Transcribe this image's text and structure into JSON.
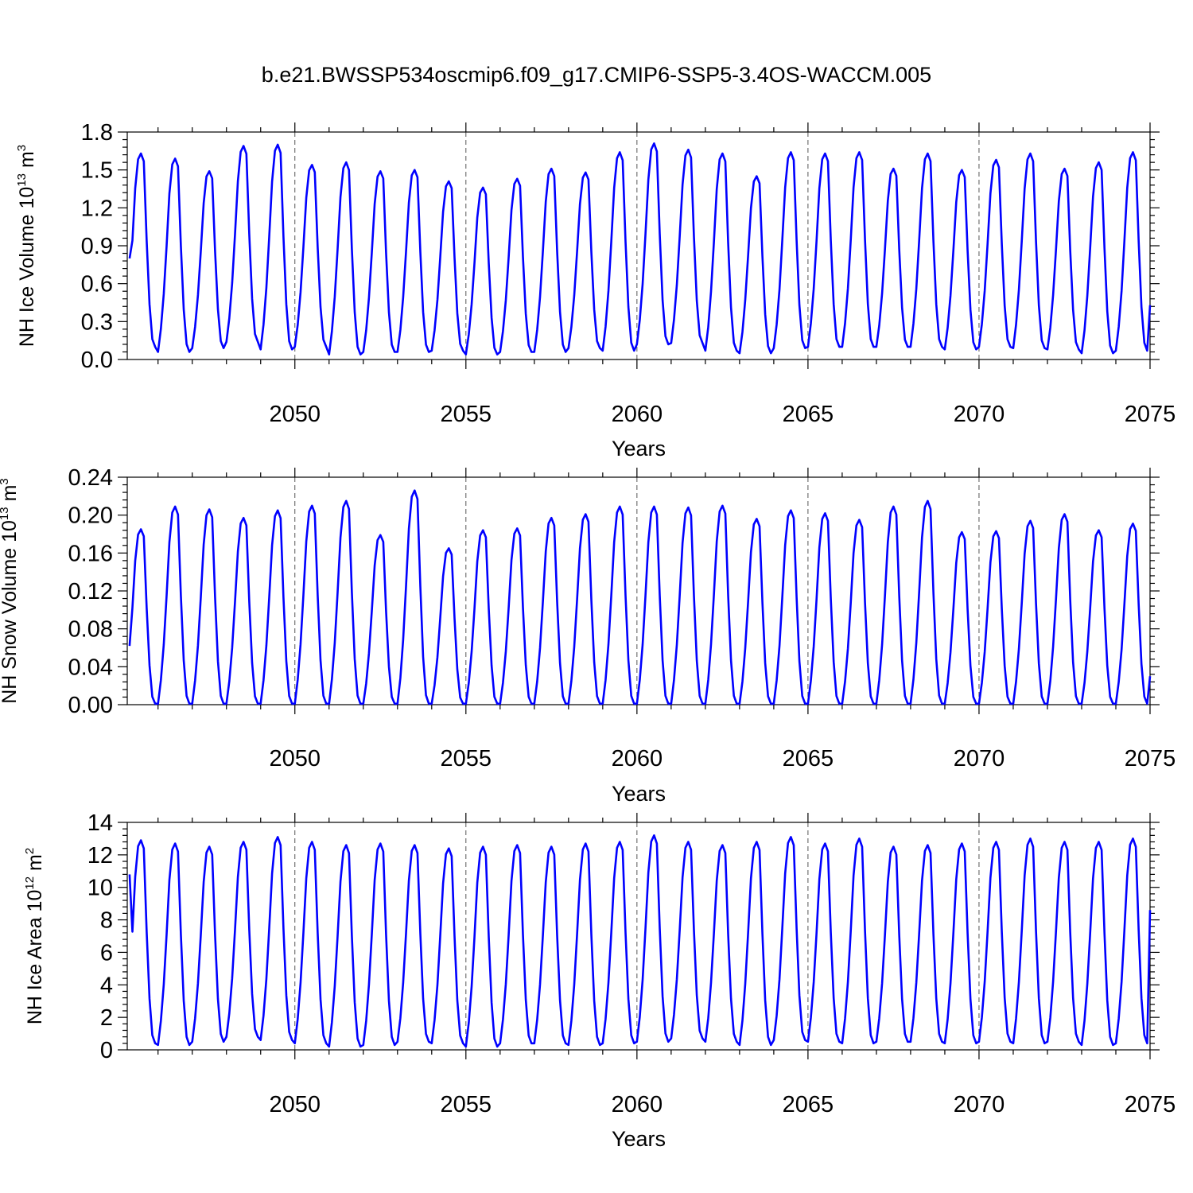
{
  "title": "b.e21.BWSSP534oscmip6.f09_g17.CMIP6-SSP5-3.4OS-WACCM.005",
  "series_color": "#0000ff",
  "chart_data": [
    {
      "type": "line",
      "title": "",
      "xlabel": "Years",
      "ylabel_main": "NH Ice Volume 10",
      "ylabel_exp": "13",
      "ylabel_unit": " m",
      "ylabel_unit_exp": "3",
      "xlim": [
        2045.1,
        2075.0
      ],
      "ylim": [
        0.0,
        1.8
      ],
      "xticks": [
        2050,
        2055,
        2060,
        2065,
        2070,
        2075
      ],
      "xtick_labels": [
        "2050",
        "2055",
        "2060",
        "2065",
        "2070",
        "2075"
      ],
      "yticks": [
        0.0,
        0.3,
        0.6,
        0.9,
        1.2,
        1.5,
        1.8
      ],
      "ytick_labels": [
        "0.0",
        "0.3",
        "0.6",
        "0.9",
        "1.2",
        "1.5",
        "1.8"
      ],
      "grid": "dashed vertical at 2050, 2055, 2060, 2065, 2070",
      "start_value": 0.8,
      "end_value": 0.43,
      "annual_max": [
        1.63,
        1.59,
        1.49,
        1.69,
        1.7,
        1.54,
        1.56,
        1.49,
        1.5,
        1.41,
        1.36,
        1.43,
        1.51,
        1.48,
        1.64,
        1.71,
        1.66,
        1.63,
        1.45,
        1.64,
        1.63,
        1.64,
        1.51,
        1.63,
        1.5,
        1.58,
        1.63,
        1.51,
        1.56,
        1.64
      ],
      "annual_min": [
        0.1,
        0.06,
        0.09,
        0.14,
        0.08,
        0.1,
        0.04,
        0.06,
        0.06,
        0.07,
        0.04,
        0.06,
        0.06,
        0.09,
        0.07,
        0.12,
        0.13,
        0.07,
        0.05,
        0.09,
        0.1,
        0.1,
        0.1,
        0.1,
        0.08,
        0.1,
        0.09,
        0.08,
        0.05,
        0.07
      ]
    },
    {
      "type": "line",
      "title": "",
      "xlabel": "Years",
      "ylabel_main": "NH Snow Volume 10",
      "ylabel_exp": "13",
      "ylabel_unit": " m",
      "ylabel_unit_exp": "3",
      "xlim": [
        2045.1,
        2075.0
      ],
      "ylim": [
        0.0,
        0.24
      ],
      "xticks": [
        2050,
        2055,
        2060,
        2065,
        2070,
        2075
      ],
      "xtick_labels": [
        "2050",
        "2055",
        "2060",
        "2065",
        "2070",
        "2075"
      ],
      "yticks": [
        0.0,
        0.04,
        0.08,
        0.12,
        0.16,
        0.2,
        0.24
      ],
      "ytick_labels": [
        "0.00",
        "0.04",
        "0.08",
        "0.12",
        "0.16",
        "0.20",
        "0.24"
      ],
      "grid": "dashed vertical at 2050, 2055, 2060, 2065, 2070",
      "start_value": 0.062,
      "end_value": 0.03,
      "annual_max": [
        0.185,
        0.209,
        0.206,
        0.197,
        0.205,
        0.21,
        0.215,
        0.179,
        0.226,
        0.165,
        0.184,
        0.186,
        0.197,
        0.201,
        0.209,
        0.209,
        0.208,
        0.21,
        0.196,
        0.205,
        0.202,
        0.195,
        0.209,
        0.215,
        0.182,
        0.183,
        0.194,
        0.201,
        0.184,
        0.191
      ],
      "annual_min": [
        0.001,
        0.001,
        0.001,
        0.001,
        0.001,
        0.001,
        0.001,
        0.001,
        0.001,
        0.001,
        0.001,
        0.001,
        0.001,
        0.001,
        0.001,
        0.001,
        0.001,
        0.001,
        0.001,
        0.001,
        0.001,
        0.001,
        0.001,
        0.001,
        0.001,
        0.001,
        0.001,
        0.001,
        0.001,
        0.001
      ]
    },
    {
      "type": "line",
      "title": "",
      "xlabel": "Years",
      "ylabel_main": "NH Ice Area 10",
      "ylabel_exp": "12",
      "ylabel_unit": " m",
      "ylabel_unit_exp": "2",
      "xlim": [
        2045.1,
        2075.0
      ],
      "ylim": [
        0,
        14
      ],
      "xticks": [
        2050,
        2055,
        2060,
        2065,
        2070,
        2075
      ],
      "xtick_labels": [
        "2050",
        "2055",
        "2060",
        "2065",
        "2070",
        "2075"
      ],
      "yticks": [
        0,
        2,
        4,
        6,
        8,
        10,
        12,
        14
      ],
      "ytick_labels": [
        "0",
        "2",
        "4",
        "6",
        "8",
        "10",
        "12",
        "14"
      ],
      "grid": "dashed vertical at 2050, 2055, 2060, 2065, 2070",
      "start_value": 10.8,
      "end_value": 8.6,
      "annual_max": [
        12.9,
        12.7,
        12.5,
        12.8,
        13.1,
        12.8,
        12.6,
        12.7,
        12.6,
        12.4,
        12.5,
        12.6,
        12.5,
        12.7,
        12.8,
        13.2,
        12.8,
        12.6,
        12.8,
        13.1,
        12.7,
        13.0,
        12.5,
        12.6,
        12.7,
        12.8,
        13.0,
        12.8,
        12.8,
        13.0
      ],
      "annual_min": [
        0.4,
        0.3,
        0.5,
        0.8,
        0.6,
        0.4,
        0.2,
        0.3,
        0.5,
        0.4,
        0.2,
        0.4,
        0.4,
        0.3,
        0.4,
        0.5,
        0.7,
        0.5,
        0.3,
        0.6,
        0.5,
        0.4,
        0.5,
        0.5,
        0.4,
        0.5,
        0.4,
        0.5,
        0.3,
        0.4
      ]
    }
  ]
}
